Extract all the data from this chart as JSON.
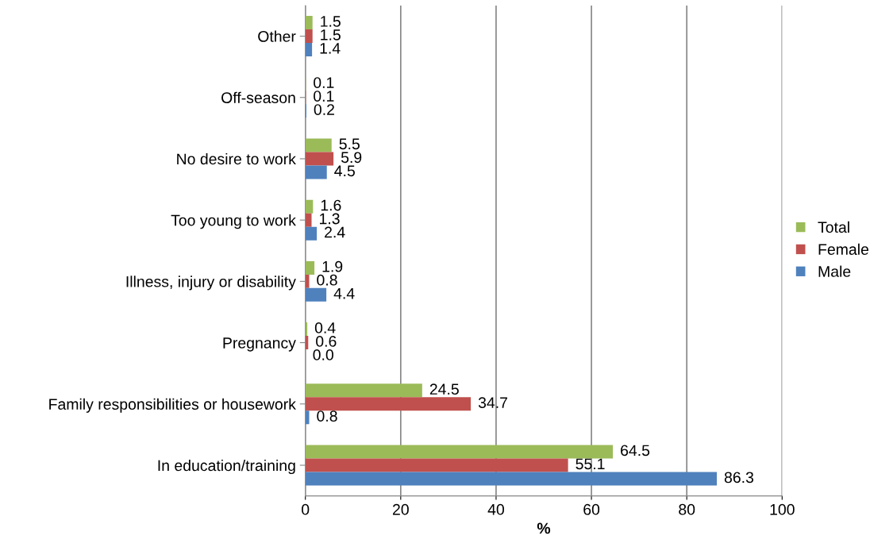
{
  "chart_data": {
    "type": "bar",
    "orientation": "horizontal",
    "xlabel": "%",
    "categories": [
      "Other",
      "Off-season",
      "No desire to work",
      "Too young to work",
      "Illness, injury or disability",
      "Pregnancy",
      "Family responsibilities or housework",
      "In education/training"
    ],
    "series": [
      {
        "name": "Total",
        "color": "#9bbb59",
        "values": [
          1.5,
          0.1,
          5.5,
          1.6,
          1.9,
          0.4,
          24.5,
          64.5
        ],
        "value_labels": [
          "1.5",
          "0.1",
          "5.5",
          "1.6",
          "1.9",
          "0.4",
          "24.5",
          "64.5"
        ]
      },
      {
        "name": "Female",
        "color": "#c0504d",
        "values": [
          1.5,
          0.1,
          5.9,
          1.3,
          0.8,
          0.6,
          34.7,
          55.1
        ],
        "value_labels": [
          "1.5",
          "0.1",
          "5.9",
          "1.3",
          "0.8",
          "0.6",
          "34.7",
          "55.1"
        ]
      },
      {
        "name": "Male",
        "color": "#4f81bd",
        "values": [
          1.4,
          0.2,
          4.5,
          2.4,
          4.4,
          0.0,
          0.8,
          86.3
        ],
        "value_labels": [
          "1.4",
          "0.2",
          "4.5",
          "2.4",
          "4.4",
          "0.0",
          "0.8",
          "86.3"
        ]
      }
    ],
    "xlim": [
      0,
      100
    ],
    "xticks": [
      0,
      20,
      40,
      60,
      80,
      100
    ],
    "grid": "x",
    "legend": "right"
  }
}
